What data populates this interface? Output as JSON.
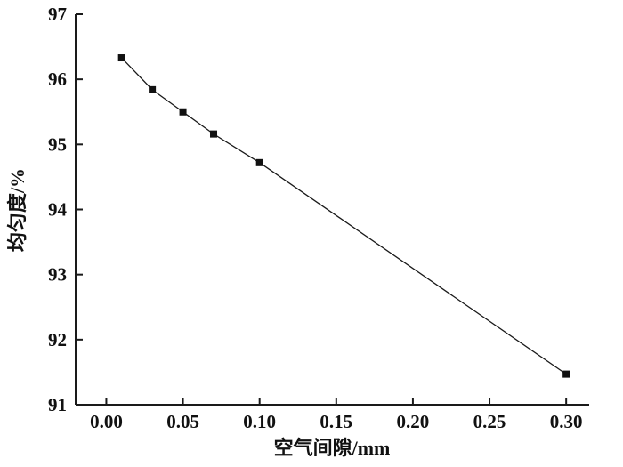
{
  "figure": {
    "background": "#ffffff",
    "axis_color": "#1a1a1a"
  },
  "chart_data": {
    "type": "line",
    "title": "",
    "xlabel": "空气间隙/mm",
    "ylabel": "均匀度/%",
    "x": [
      0.01,
      0.03,
      0.05,
      0.07,
      0.1,
      0.3
    ],
    "y": [
      96.33,
      95.84,
      95.5,
      95.16,
      94.72,
      91.47
    ],
    "series": [
      {
        "name": "均匀度",
        "x": [
          0.01,
          0.03,
          0.05,
          0.07,
          0.1,
          0.3
        ],
        "y": [
          96.33,
          95.84,
          95.5,
          95.16,
          94.72,
          91.47
        ]
      }
    ],
    "xlim": [
      -0.02,
      0.315
    ],
    "ylim": [
      91,
      97
    ],
    "xticks": [
      0.0,
      0.05,
      0.1,
      0.15,
      0.2,
      0.25,
      0.3
    ],
    "yticks": [
      91,
      92,
      93,
      94,
      95,
      96,
      97
    ],
    "xtick_format_decimals": 2,
    "marker": "square",
    "marker_size": 8,
    "line_color": "#1a1a1a",
    "marker_color": "#111111",
    "grid": false,
    "legend_position": "none"
  }
}
